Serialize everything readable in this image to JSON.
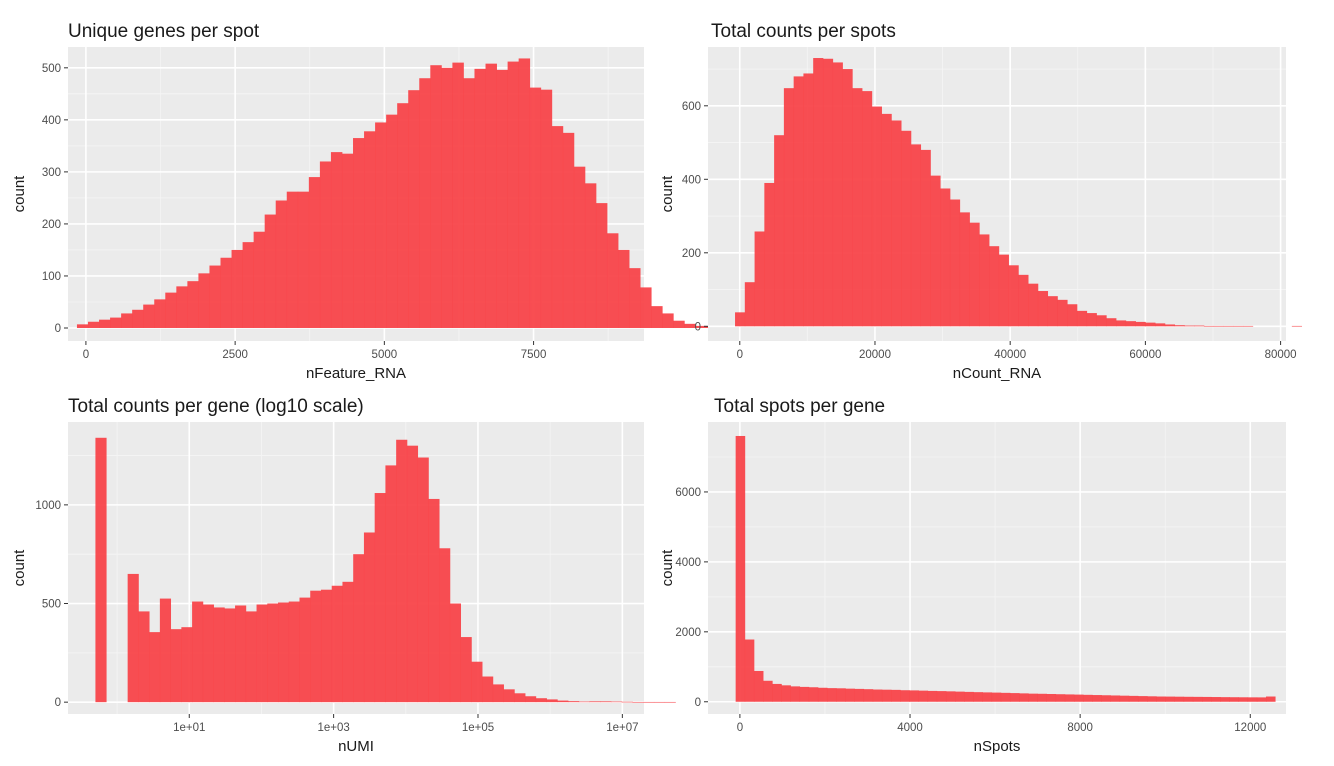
{
  "chart_data": [
    {
      "type": "bar",
      "title": "Unique genes per spot",
      "xlabel": "nFeature_RNA",
      "ylabel": "count",
      "xlim": [
        -300,
        9350
      ],
      "ylim": [
        -25,
        540
      ],
      "xticks": [
        0,
        2500,
        5000,
        7500
      ],
      "xtick_labels": [
        "0",
        "2500",
        "5000",
        "7500"
      ],
      "yticks": [
        0,
        100,
        200,
        300,
        400,
        500
      ],
      "ytick_labels": [
        "0",
        "100",
        "200",
        "300",
        "400",
        "500"
      ],
      "bin_start": -150,
      "bin_width": 185,
      "values": [
        7,
        12,
        16,
        20,
        28,
        35,
        45,
        55,
        68,
        80,
        90,
        105,
        120,
        135,
        150,
        165,
        185,
        218,
        245,
        262,
        262,
        290,
        320,
        338,
        335,
        365,
        378,
        395,
        410,
        432,
        457,
        480,
        505,
        500,
        510,
        480,
        498,
        508,
        496,
        512,
        518,
        462,
        458,
        388,
        375,
        310,
        278,
        240,
        182,
        150,
        115,
        78,
        42,
        28,
        14,
        8,
        4,
        3,
        1
      ]
    },
    {
      "type": "bar",
      "title": "Total counts per spots",
      "xlabel": "nCount_RNA",
      "ylabel": "count",
      "xlim": [
        -4700,
        80800
      ],
      "ylim": [
        -40,
        760
      ],
      "xticks": [
        0,
        20000,
        40000,
        60000,
        80000
      ],
      "xtick_labels": [
        "0",
        "20000",
        "40000",
        "60000",
        "80000"
      ],
      "yticks": [
        0,
        200,
        400,
        600
      ],
      "ytick_labels": [
        "0",
        "200",
        "400",
        "600"
      ],
      "bin_start": -700,
      "bin_width": 1445,
      "values": [
        38,
        120,
        258,
        390,
        520,
        648,
        680,
        688,
        730,
        728,
        718,
        700,
        648,
        640,
        598,
        578,
        560,
        532,
        495,
        480,
        410,
        375,
        345,
        310,
        282,
        250,
        218,
        195,
        166,
        140,
        116,
        96,
        82,
        72,
        60,
        42,
        36,
        30,
        22,
        16,
        14,
        12,
        10,
        8,
        5,
        3,
        2,
        2,
        1,
        1,
        1,
        1,
        1,
        0,
        0,
        0,
        0,
        1,
        0,
        0,
        0
      ]
    },
    {
      "type": "bar",
      "title": "Total counts per gene (log10 scale)",
      "xlabel": "nUMI",
      "ylabel": "count",
      "xscale": "log10",
      "xlim": [
        -0.68,
        7.3
      ],
      "ylim": [
        -60,
        1420
      ],
      "xticks": [
        1,
        3,
        5,
        7
      ],
      "xtick_labels": [
        "1e+01",
        "1e+03",
        "1e+05",
        "1e+07"
      ],
      "yticks": [
        0,
        500,
        1000
      ],
      "ytick_labels": [
        "0",
        "500",
        "1000"
      ],
      "bin_start": -0.3,
      "bin_width": 0.1488,
      "values": [
        1340,
        0,
        0,
        650,
        460,
        355,
        525,
        370,
        380,
        510,
        495,
        480,
        475,
        490,
        460,
        495,
        500,
        505,
        510,
        530,
        565,
        570,
        590,
        610,
        750,
        860,
        1060,
        1200,
        1330,
        1300,
        1240,
        1030,
        780,
        500,
        330,
        205,
        130,
        90,
        65,
        45,
        30,
        20,
        14,
        8,
        5,
        3,
        4,
        4,
        3,
        2,
        1,
        1,
        1,
        1,
        0
      ]
    },
    {
      "type": "bar",
      "title": "Total spots per gene",
      "xlabel": "nSpots",
      "ylabel": "count",
      "xlim": [
        -750,
        12840
      ],
      "ylim": [
        -350,
        8000
      ],
      "xticks": [
        0,
        4000,
        8000,
        12000
      ],
      "xtick_labels": [
        "0",
        "4000",
        "8000",
        "12000"
      ],
      "yticks": [
        0,
        2000,
        4000,
        6000
      ],
      "ytick_labels": [
        "0",
        "2000",
        "4000",
        "6000"
      ],
      "bin_start": -100,
      "bin_width": 215,
      "values": [
        7600,
        1780,
        880,
        600,
        510,
        470,
        440,
        425,
        415,
        400,
        390,
        385,
        375,
        368,
        360,
        350,
        345,
        340,
        330,
        325,
        318,
        310,
        305,
        298,
        290,
        282,
        275,
        268,
        262,
        255,
        248,
        240,
        232,
        228,
        222,
        216,
        210,
        205,
        198,
        192,
        186,
        180,
        174,
        168,
        162,
        156,
        150,
        148,
        145,
        142,
        140,
        138,
        135,
        132,
        130,
        128,
        126,
        125,
        150
      ]
    }
  ]
}
